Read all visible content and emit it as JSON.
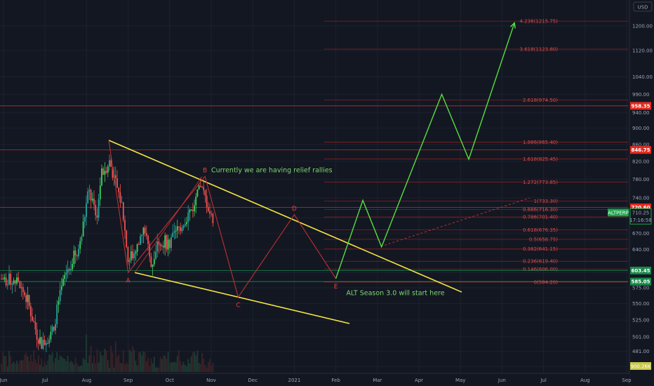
{
  "chart_data": {
    "type": "candlestick",
    "symbol_label": "ALTPERP",
    "currency": "USD",
    "colors": {
      "background": "#131722",
      "up": "#26a69a",
      "up_bright": "#3cd35f",
      "down": "#ef5350",
      "wedge": "#f5e642",
      "forecast": "#55e040",
      "wave": "#c0302f",
      "fib": "#8b1f1f",
      "fib_text": "#d94b4b"
    },
    "x_axis": {
      "labels": [
        "Jun",
        "Jul",
        "Aug",
        "Sep",
        "Oct",
        "Nov",
        "Dec",
        "2021",
        "Feb",
        "Mar",
        "Apr",
        "May",
        "Jun",
        "Jul",
        "Aug",
        "Sep"
      ]
    },
    "y_axis": {
      "scale": "log",
      "ylim": [
        445,
        1260
      ],
      "ticks": [
        "461.00",
        "481.00",
        "501.00",
        "525.00",
        "550.00",
        "575.00",
        "600.00",
        "640.00",
        "670.00",
        "700.00",
        "740.00",
        "780.00",
        "820.00",
        "860.00",
        "900.00",
        "940.00",
        "990.00",
        "1040.00",
        "1120.00",
        "1200.00"
      ],
      "tick_values": [
        461,
        481,
        501,
        525,
        550,
        575,
        600,
        640,
        670,
        700,
        740,
        780,
        820,
        860,
        900,
        940,
        990,
        1040,
        1120,
        1200
      ]
    },
    "fib_levels": [
      {
        "label": "4.236(1215.75)",
        "value": 1215.75
      },
      {
        "label": "3.618(1123.80)",
        "value": 1123.8
      },
      {
        "label": "2.618(974.50)",
        "value": 974.5
      },
      {
        "label": "1.886(865.40)",
        "value": 865.4
      },
      {
        "label": "1.618(825.45)",
        "value": 825.45
      },
      {
        "label": "1.272(773.85)",
        "value": 773.85
      },
      {
        "label": "1(733.30)",
        "value": 733.3
      },
      {
        "label": "0.886(716.30)",
        "value": 716.3
      },
      {
        "label": "0.786(701.40)",
        "value": 701.4
      },
      {
        "label": "0.618(676.35)",
        "value": 676.35
      },
      {
        "label": "0.5(658.75)",
        "value": 658.75
      },
      {
        "label": "0.382(641.15)",
        "value": 641.15
      },
      {
        "label": "0.236(619.40)",
        "value": 619.4
      },
      {
        "label": "0.146(606.00)",
        "value": 606.0
      },
      {
        "label": "0(584.20)",
        "value": 584.2
      }
    ],
    "horizontal_lines": [
      {
        "label": "958.35",
        "value": 958.35,
        "color": "#d9342b",
        "tag_color": "#e02b20"
      },
      {
        "label": "846.75",
        "value": 846.75,
        "color": "#d9342b",
        "tag_color": "#e02b20"
      },
      {
        "label": "720.60",
        "value": 720.6,
        "color": "#d9342b",
        "tag_color": "#e02b20"
      },
      {
        "label": "603.45",
        "value": 603.45,
        "color": "#1f9e5a",
        "tag_color": "#18884a"
      },
      {
        "label": "585.05",
        "value": 585.05,
        "color": "#1f9e5a",
        "tag_color": "#18884a"
      }
    ],
    "current_price": {
      "label": "710.25",
      "countdown": "17:16:58",
      "value": 710.25
    },
    "volume_label": "900.26K",
    "wave_points": [
      {
        "label": "A",
        "date_index": 3.0,
        "value": 600
      },
      {
        "label": "B",
        "date_index": 4.85,
        "value": 786
      },
      {
        "label": "C",
        "date_index": 5.65,
        "value": 560
      },
      {
        "label": "D",
        "date_index": 7.0,
        "value": 706
      },
      {
        "label": "E",
        "date_index": 8.0,
        "value": 590
      }
    ],
    "forecast_path": [
      {
        "date_index": 8.0,
        "value": 590
      },
      {
        "date_index": 8.65,
        "value": 735
      },
      {
        "date_index": 9.1,
        "value": 645
      },
      {
        "date_index": 10.55,
        "value": 990
      },
      {
        "date_index": 11.2,
        "value": 825
      },
      {
        "date_index": 12.3,
        "value": 1210
      }
    ],
    "annotations": [
      {
        "text": "Currently we are having relief rallies",
        "date_index": 5.0,
        "value": 795
      },
      {
        "text": "ALT Season 3.0 will start here",
        "date_index": 8.25,
        "value": 563
      }
    ]
  }
}
